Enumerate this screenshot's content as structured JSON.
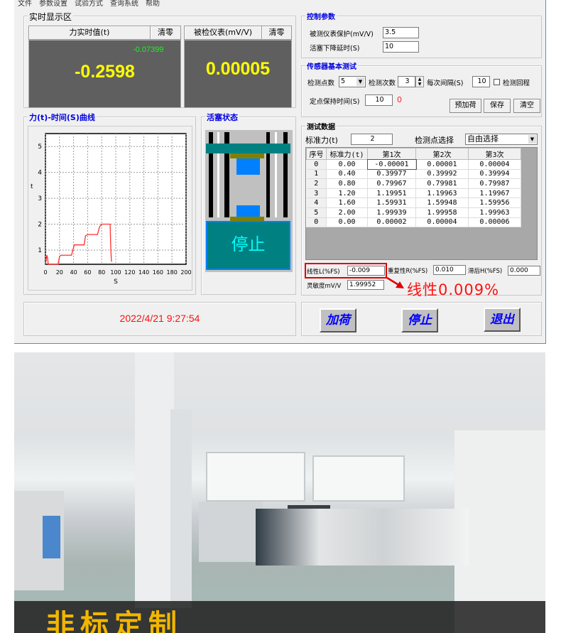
{
  "menu": [
    "文件",
    "参数设置",
    "试验方式",
    "查询系统",
    "帮助"
  ],
  "realtime": {
    "title": "实时显示区",
    "force_label": "力实时值(t)",
    "zero": "清零",
    "meter_label": "被检仪表(mV/V)",
    "force_small": "-0.07399",
    "force_value": "-0.2598",
    "meter_value": "0.00005"
  },
  "chart_title": "力(t)-时间(S)曲线",
  "chart_data": {
    "type": "line",
    "xlabel": "S",
    "ylabel": "t",
    "xlim": [
      0,
      200
    ],
    "ylim": [
      0.45,
      5.5
    ],
    "grid": true,
    "xticks": [
      "0",
      "20",
      "40",
      "60",
      "80",
      "100",
      "120",
      "140",
      "160",
      "180",
      "200"
    ],
    "yticks": [
      "1",
      "2",
      "3",
      "4",
      "5"
    ],
    "series": [
      {
        "color": "#ff3030",
        "x": [
          0,
          1,
          2,
          3,
          4,
          5,
          18,
          20,
          22,
          37,
          39,
          41,
          50,
          52,
          55,
          57,
          60,
          72,
          74,
          77,
          80,
          92,
          93,
          94
        ],
        "y": [
          0.45,
          0.6,
          0.8,
          0.7,
          0.45,
          0.45,
          0.45,
          0.75,
          0.8,
          0.8,
          1.0,
          1.2,
          1.2,
          1.2,
          1.2,
          1.55,
          1.6,
          1.6,
          1.6,
          1.9,
          2.0,
          2.0,
          1.0,
          0.55
        ]
      }
    ]
  },
  "piston": {
    "title": "活塞状态",
    "status": "停止"
  },
  "datetime": "2022/4/21 9:27:54",
  "control": {
    "title": "控制参数",
    "protect_label": "被测仪表保护(mV/V)",
    "protect_value": "3.5",
    "delay_label": "活塞下降延时(S)",
    "delay_value": "10"
  },
  "sensor": {
    "title": "传感器基本测试",
    "points_label": "检测点数",
    "points_value": "5",
    "times_label": "检测次数",
    "times_value": "3",
    "interval_label": "每次间隔(S)",
    "interval_value": "10",
    "return_label": "检测回程",
    "return_checked": false,
    "hold_label": "定点保持时间(S)",
    "hold_value": "10",
    "hold_count": "0",
    "preload": "预加荷",
    "save": "保存",
    "clear": "清空"
  },
  "testdata": {
    "title": "测试数据",
    "std_label": "标准力(t)",
    "std_value": "2",
    "select_label": "检测点选择",
    "select_value": "自由选择",
    "headers": [
      "序号",
      "标准力(t)",
      "第1次",
      "第2次",
      "第3次"
    ],
    "rows": [
      [
        "0",
        "0.00",
        "-0.00001",
        "0.00001",
        "0.00004"
      ],
      [
        "1",
        "0.40",
        "0.39977",
        "0.39992",
        "0.39994"
      ],
      [
        "2",
        "0.80",
        "0.79967",
        "0.79981",
        "0.79987"
      ],
      [
        "3",
        "1.20",
        "1.19951",
        "1.19963",
        "1.19967"
      ],
      [
        "4",
        "1.60",
        "1.59931",
        "1.59948",
        "1.59956"
      ],
      [
        "5",
        "2.00",
        "1.99939",
        "1.99958",
        "1.99963"
      ],
      [
        "0",
        "0.00",
        "0.00002",
        "0.00004",
        "0.00006"
      ]
    ],
    "linearity_label": "线性L(%FS)",
    "linearity_value": "-0.009",
    "repeat_label": "重复性R(%FS)",
    "repeat_value": "0.010",
    "hyst_label": "滞后H(%FS)",
    "hyst_value": "0.000",
    "sens_label": "灵敏度mV/V",
    "sens_value": "1.99952",
    "annotation": "线性0.009%"
  },
  "controls": {
    "load": "加荷",
    "stop": "停止",
    "exit": "退出"
  },
  "photo": {
    "banner": "非标定制"
  }
}
